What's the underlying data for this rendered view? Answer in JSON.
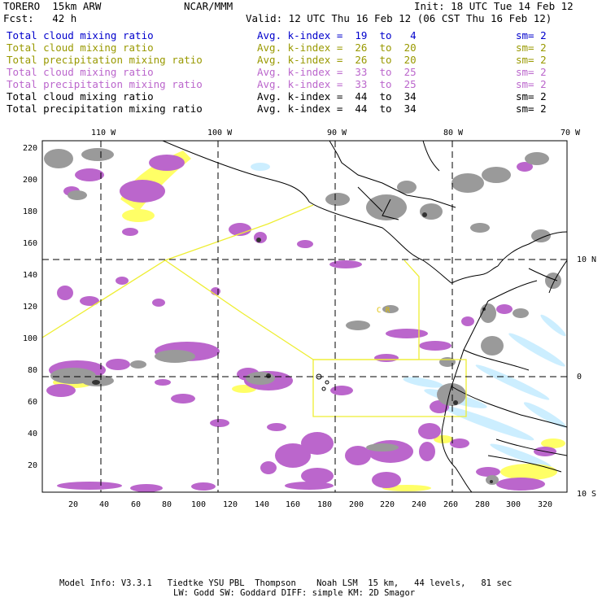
{
  "header": {
    "model": "TORERO  15km ARW",
    "org": "NCAR/MMM",
    "init": "Init: 18 UTC Tue 14 Feb 12",
    "fcst": "Fcst:   42 h",
    "valid": "Valid: 12 UTC Thu 16 Feb 12 (06 CST Thu 16 Feb 12)"
  },
  "legend": [
    {
      "field": "Total cloud mixing ratio",
      "kindex": "Avg. k-index =  19  to   4",
      "sm": "sm= 2",
      "color": "#0000cc"
    },
    {
      "field": "Total cloud mixing ratio",
      "kindex": "Avg. k-index =  26  to  20",
      "sm": "sm= 2",
      "color": "#999900"
    },
    {
      "field": "Total precipitation mixing ratio",
      "kindex": "Avg. k-index =  26  to  20",
      "sm": "sm= 2",
      "color": "#999900"
    },
    {
      "field": "Total cloud mixing ratio",
      "kindex": "Avg. k-index =  33  to  25",
      "sm": "sm= 2",
      "color": "#bb66cc"
    },
    {
      "field": "Total precipitation mixing ratio",
      "kindex": "Avg. k-index =  33  to  25",
      "sm": "sm= 2",
      "color": "#bb66cc"
    },
    {
      "field": "Total cloud mixing ratio",
      "kindex": "Avg. k-index =  44  to  34",
      "sm": "sm= 2",
      "color": "#000000"
    },
    {
      "field": "Total precipitation mixing ratio",
      "kindex": "Avg. k-index =  44  to  34",
      "sm": "sm= 2",
      "color": "#000000"
    }
  ],
  "map": {
    "lon_labels": [
      "110 W",
      "100 W",
      "90 W",
      "80 W",
      "70 W"
    ],
    "lat_labels": [
      "10 N",
      "0",
      "10 S"
    ],
    "y_ticks": [
      "220",
      "200",
      "180",
      "160",
      "140",
      "120",
      "100",
      "80",
      "60",
      "40",
      "20"
    ],
    "x_ticks": [
      "20",
      "40",
      "60",
      "80",
      "100",
      "120",
      "140",
      "160",
      "180",
      "200",
      "220",
      "240",
      "260",
      "280",
      "300",
      "320"
    ],
    "region_label": "C R",
    "colors": {
      "grey": "#9a9a9a",
      "purple": "#bb66cc",
      "yellow": "#ffff66",
      "lightblue": "#cceeff",
      "box": "#eeee33"
    }
  },
  "footer": {
    "line1": "Model Info: V3.3.1   Tiedtke YSU PBL  Thompson    Noah LSM  15 km,   44 levels,   81 sec",
    "line2": "LW: Godd SW: Goddard DIFF: simple KM: 2D Smagor"
  }
}
